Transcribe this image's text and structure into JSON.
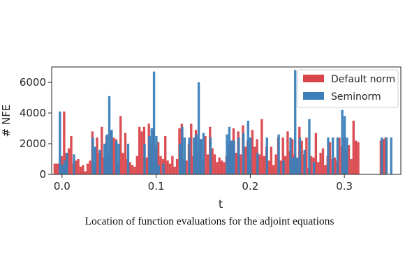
{
  "caption": "Location of function evaluations for the adjoint equations",
  "chart_data": {
    "type": "bar",
    "title": "",
    "xlabel": "t",
    "ylabel": "# NFE",
    "xlim": [
      -0.011,
      0.36
    ],
    "ylim": [
      0,
      7000
    ],
    "x_ticks": [
      0.0,
      0.1,
      0.2,
      0.3
    ],
    "x_tick_labels": [
      "0.0",
      "0.1",
      "0.2",
      "0.3"
    ],
    "y_ticks": [
      0,
      2000,
      4000,
      6000
    ],
    "y_tick_labels": [
      "0",
      "2000",
      "4000",
      "6000"
    ],
    "bin_width": 0.0025,
    "grid": false,
    "legend_position": "upper right",
    "series": [
      {
        "name": "Default norm",
        "color": "#d9454b",
        "x": [
          -0.009,
          -0.0065,
          -0.004,
          -0.0015,
          0.001,
          0.0035,
          0.006,
          0.0085,
          0.011,
          0.0135,
          0.016,
          0.0185,
          0.021,
          0.0235,
          0.026,
          0.0285,
          0.031,
          0.0335,
          0.036,
          0.0385,
          0.041,
          0.0435,
          0.046,
          0.0485,
          0.051,
          0.0535,
          0.056,
          0.0585,
          0.061,
          0.0635,
          0.066,
          0.0685,
          0.071,
          0.0735,
          0.076,
          0.0785,
          0.081,
          0.0835,
          0.086,
          0.0885,
          0.091,
          0.0935,
          0.096,
          0.0985,
          0.101,
          0.1035,
          0.106,
          0.1085,
          0.111,
          0.1135,
          0.116,
          0.1185,
          0.121,
          0.1235,
          0.126,
          0.1285,
          0.131,
          0.1335,
          0.136,
          0.1385,
          0.141,
          0.1435,
          0.146,
          0.1485,
          0.151,
          0.1535,
          0.156,
          0.1585,
          0.161,
          0.1635,
          0.166,
          0.1685,
          0.171,
          0.1735,
          0.176,
          0.1785,
          0.181,
          0.1835,
          0.186,
          0.1885,
          0.191,
          0.1935,
          0.196,
          0.1985,
          0.201,
          0.2035,
          0.206,
          0.2085,
          0.211,
          0.2135,
          0.216,
          0.2185,
          0.221,
          0.2235,
          0.226,
          0.2285,
          0.231,
          0.2335,
          0.236,
          0.2385,
          0.241,
          0.2435,
          0.246,
          0.2485,
          0.251,
          0.2535,
          0.256,
          0.2585,
          0.261,
          0.2635,
          0.266,
          0.2685,
          0.271,
          0.2735,
          0.276,
          0.2785,
          0.281,
          0.2835,
          0.286,
          0.2885,
          0.291,
          0.2935,
          0.296,
          0.2985,
          0.301,
          0.3035,
          0.306,
          0.3085,
          0.311,
          0.3135,
          0.3375,
          0.34,
          0.3425
        ],
        "values": [
          700,
          700,
          700,
          1200,
          4100,
          1400,
          1700,
          2500,
          700,
          900,
          1000,
          500,
          600,
          200,
          700,
          900,
          2800,
          700,
          2400,
          1400,
          3100,
          1100,
          2500,
          1400,
          2800,
          2400,
          2300,
          700,
          3800,
          1400,
          2700,
          1000,
          800,
          600,
          500,
          1200,
          3100,
          2800,
          3100,
          1100,
          3300,
          2000,
          3000,
          1800,
          2100,
          1200,
          1000,
          2500,
          900,
          700,
          1200,
          500,
          1000,
          3000,
          3300,
          1000,
          900,
          2000,
          3300,
          1200,
          2900,
          1500,
          2300,
          900,
          2500,
          1300,
          3100,
          1700,
          1300,
          800,
          1100,
          900,
          800,
          1200,
          1900,
          2200,
          3000,
          1400,
          2800,
          1300,
          3200,
          1800,
          2200,
          1000,
          2900,
          1800,
          2300,
          1300,
          3600,
          1200,
          1800,
          900,
          1800,
          600,
          1300,
          2400,
          900,
          2400,
          1200,
          2800,
          1500,
          2300,
          1300,
          1000,
          3100,
          2200,
          1300,
          2400,
          400,
          1200,
          1100,
          2700,
          800,
          1400,
          1700,
          600,
          1200,
          2100,
          1000,
          1100,
          900,
          2400,
          1800,
          2400,
          1600,
          1900,
          1000,
          3500,
          2200,
          2100,
          2200,
          2300,
          2400
        ]
      },
      {
        "name": "Seminorm",
        "color": "#3a7fba",
        "x": [
          -0.0035,
          -0.001,
          0.0015,
          0.004,
          0.0115,
          0.0315,
          0.034,
          0.039,
          0.044,
          0.0465,
          0.049,
          0.0515,
          0.0565,
          0.059,
          0.069,
          0.0865,
          0.0915,
          0.094,
          0.0965,
          0.099,
          0.1015,
          0.1065,
          0.124,
          0.1265,
          0.129,
          0.134,
          0.139,
          0.1415,
          0.144,
          0.1465,
          0.149,
          0.1565,
          0.174,
          0.1765,
          0.179,
          0.1815,
          0.1865,
          0.1915,
          0.1965,
          0.199,
          0.2065,
          0.2165,
          0.229,
          0.234,
          0.2415,
          0.244,
          0.2465,
          0.249,
          0.2515,
          0.2565,
          0.2615,
          0.2665,
          0.2815,
          0.2865,
          0.2915,
          0.2965,
          0.299,
          0.3015,
          0.3385,
          0.3435,
          0.3485
        ]
      }
    ]
  },
  "seminorm_values_note": "",
  "seminorm_values": [
    4100,
    600,
    900,
    1400,
    1300,
    2400,
    1800,
    1600,
    2000,
    2600,
    5100,
    2900,
    2200,
    2000,
    2000,
    2000,
    2500,
    3000,
    6700,
    2500,
    600,
    700,
    2000,
    3100,
    2400,
    2400,
    2400,
    2600,
    6000,
    2300,
    2700,
    2400,
    2600,
    3100,
    2200,
    2200,
    2400,
    2700,
    3500,
    2400,
    1400,
    2400,
    2600,
    900,
    2400,
    1100,
    6800,
    1100,
    2400,
    1600,
    3600,
    800,
    2400,
    2400,
    2400,
    4200,
    3800,
    2400,
    2400,
    2400,
    2400
  ],
  "legend": [
    {
      "label": "Default norm",
      "color": "#d9454b"
    },
    {
      "label": "Seminorm",
      "color": "#3a7fba"
    }
  ]
}
